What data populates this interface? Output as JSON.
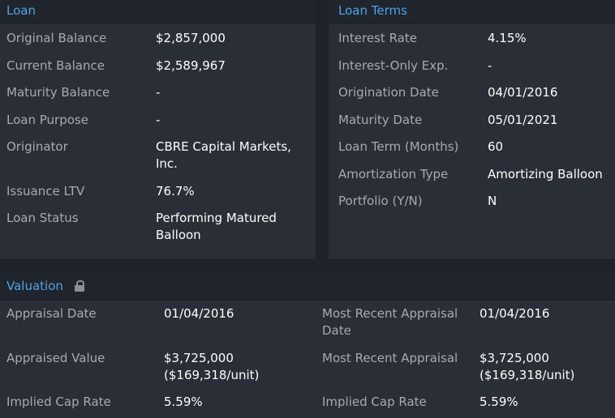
{
  "loan": {
    "title": "Loan",
    "rows": [
      {
        "label": "Original Balance",
        "value": "$2,857,000"
      },
      {
        "label": "Current Balance",
        "value": "$2,589,967"
      },
      {
        "label": "Maturity Balance",
        "value": "-"
      },
      {
        "label": "Loan Purpose",
        "value": "-"
      },
      {
        "label": "Originator",
        "value": "CBRE Capital Markets, Inc."
      },
      {
        "label": "Issuance LTV",
        "value": "76.7%"
      },
      {
        "label": "Loan Status",
        "value": "Performing Matured Balloon"
      }
    ]
  },
  "loan_terms": {
    "title": "Loan Terms",
    "rows": [
      {
        "label": "Interest Rate",
        "value": "4.15%"
      },
      {
        "label": "Interest-Only Exp.",
        "value": "-"
      },
      {
        "label": "Origination Date",
        "value": "04/01/2016"
      },
      {
        "label": "Maturity Date",
        "value": "05/01/2021"
      },
      {
        "label": "Loan Term (Months)",
        "value": "60"
      },
      {
        "label": "Amortization Type",
        "value": "Amortizing Balloon"
      },
      {
        "label": "Portfolio (Y/N)",
        "value": "N"
      }
    ]
  },
  "valuation": {
    "title": "Valuation",
    "icon": "lock-icon",
    "left": [
      {
        "label": "Appraisal Date",
        "value": "01/04/2016"
      },
      {
        "label": "Appraised Value",
        "value": "$3,725,000 ($169,318/unit)"
      },
      {
        "label": "Implied Cap Rate",
        "value": "5.59%"
      }
    ],
    "right": [
      {
        "label": "Most Recent Appraisal Date",
        "value": "01/04/2016"
      },
      {
        "label": "Most Recent Appraisal",
        "value": "$3,725,000 ($169,318/unit)"
      },
      {
        "label": "Implied Cap Rate",
        "value": "5.59%"
      }
    ]
  }
}
